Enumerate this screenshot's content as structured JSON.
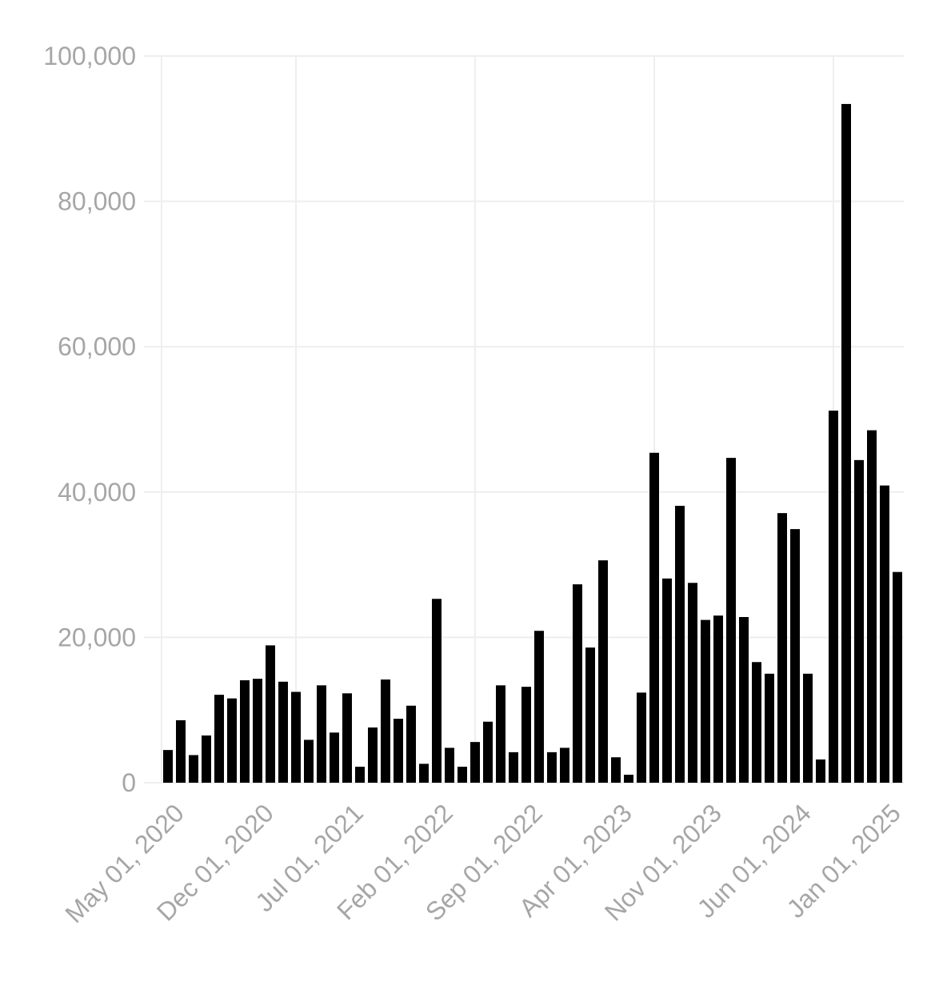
{
  "chart_data": {
    "type": "bar",
    "color": "#000000",
    "grid": true,
    "categories": [
      null,
      "May 01, 2020",
      null,
      null,
      null,
      null,
      null,
      null,
      "Dec 01, 2020",
      null,
      null,
      null,
      null,
      null,
      null,
      "Jul 01, 2021",
      null,
      null,
      null,
      null,
      null,
      null,
      "Feb 01, 2022",
      null,
      null,
      null,
      null,
      null,
      null,
      "Sep 01, 2022",
      null,
      null,
      null,
      null,
      null,
      null,
      "Apr 01, 2023",
      null,
      null,
      null,
      null,
      null,
      null,
      "Nov 01, 2023",
      null,
      null,
      null,
      null,
      null,
      null,
      "Jun 01, 2024",
      null,
      null,
      null,
      null,
      null,
      null,
      "Jan 01, 2025"
    ],
    "values": [
      4500,
      8600,
      3800,
      6500,
      12100,
      11600,
      14100,
      14300,
      18900,
      13900,
      12500,
      5900,
      13400,
      6900,
      12300,
      2200,
      7600,
      14200,
      8800,
      10600,
      2600,
      25300,
      4800,
      2200,
      5600,
      8400,
      13400,
      4200,
      13200,
      20900,
      4200,
      4800,
      27300,
      18600,
      30600,
      3500,
      1100,
      12400,
      45400,
      28100,
      38100,
      27500,
      22400,
      23000,
      44700,
      22800,
      16600,
      15000,
      37100,
      34900,
      15000,
      3200,
      51200,
      93400,
      44400,
      48500,
      40900,
      29000
    ],
    "ylim": [
      0,
      100000
    ],
    "yticks": [
      0,
      {
        "value": 20000,
        "label": "20,000"
      },
      {
        "value": 40000,
        "label": "40,000"
      },
      {
        "value": 60000,
        "label": "60,000"
      },
      {
        "value": 80000,
        "label": "80,000"
      },
      {
        "value": 100000,
        "label": "100,000"
      }
    ]
  }
}
